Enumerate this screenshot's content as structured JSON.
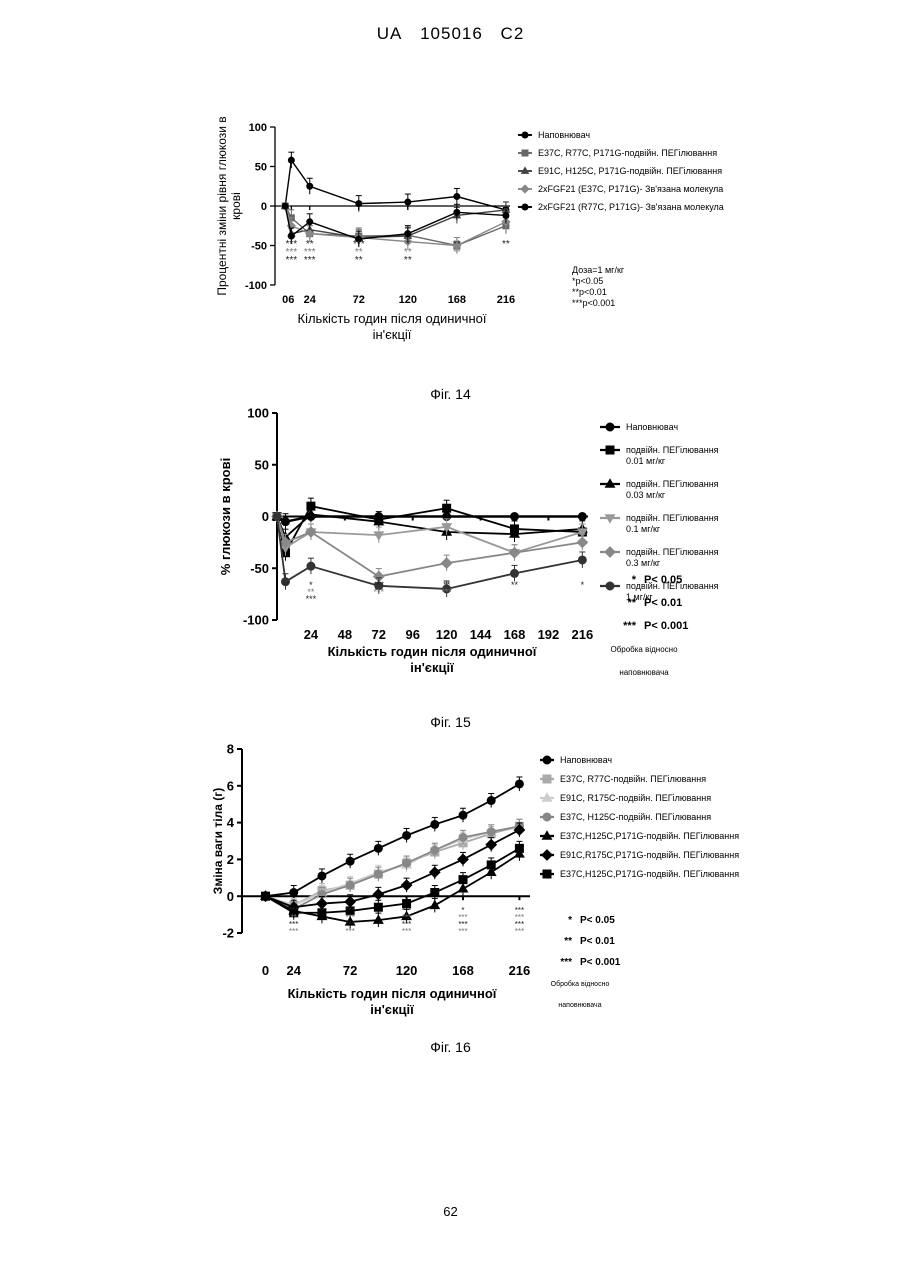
{
  "header": {
    "country": "UA",
    "number": "105016",
    "kind": "C2"
  },
  "page_number": "62",
  "figures": [
    {
      "caption": "Фіг. 14"
    },
    {
      "caption": "Фіг. 15"
    },
    {
      "caption": "Фіг. 16"
    }
  ],
  "chart_data": [
    {
      "type": "line",
      "ylabel": "Процентні зміни рівня глюкози в крові",
      "xlabel_lines": [
        "Кількість годин після одиничної",
        "ін'єкції"
      ],
      "ylim": [
        -100,
        100
      ],
      "yticks": [
        100,
        50,
        0,
        -50,
        -100
      ],
      "xticks": [
        0,
        6,
        24,
        72,
        120,
        168,
        216
      ],
      "legend_position": "right",
      "series": [
        {
          "name": "Наповнювач",
          "marker": "circle",
          "color": "#000000",
          "x": [
            0,
            6,
            24,
            72,
            120,
            168,
            216
          ],
          "y": [
            0,
            58,
            25,
            3,
            5,
            12,
            -5
          ]
        },
        {
          "name": "E37C, R77C, P171G-подвійн. ПЕГілювання",
          "marker": "square",
          "color": "#666666",
          "x": [
            0,
            6,
            24,
            72,
            120,
            168,
            216
          ],
          "y": [
            0,
            -15,
            -35,
            -38,
            -37,
            -50,
            -25
          ]
        },
        {
          "name": "E91C, H125C, P171G-подвійн. ПЕГілювання",
          "marker": "triangle",
          "color": "#444444",
          "x": [
            0,
            6,
            24,
            72,
            120,
            168,
            216
          ],
          "y": [
            0,
            -35,
            -30,
            -40,
            -38,
            -12,
            -5
          ]
        },
        {
          "name": "2xFGF21 (E37C, P171G)- Зв'язана молекула",
          "marker": "diamond",
          "color": "#888888",
          "x": [
            0,
            6,
            24,
            72,
            120,
            168,
            216
          ],
          "y": [
            0,
            -25,
            -35,
            -40,
            -45,
            -50,
            -20
          ]
        },
        {
          "name": "2xFGF21 (R77C, P171G)- Зв'язана молекула",
          "marker": "circle",
          "color": "#000000",
          "x": [
            0,
            6,
            24,
            72,
            120,
            168,
            216
          ],
          "y": [
            0,
            -38,
            -20,
            -42,
            -35,
            -8,
            -12
          ]
        }
      ],
      "annotations": [
        "Доза=1 мг/кг",
        "*p<0.05",
        "**p<0.01",
        "***p<0.001"
      ],
      "significance_marks": [
        {
          "x": 6,
          "rows": [
            "***",
            "***",
            "***"
          ]
        },
        {
          "x": 24,
          "rows": [
            "**",
            "***",
            "***"
          ]
        },
        {
          "x": 72,
          "rows": [
            "***",
            "**",
            "**"
          ]
        },
        {
          "x": 120,
          "rows": [
            "*",
            "**",
            "**"
          ]
        },
        {
          "x": 168,
          "rows": [
            "**",
            "**"
          ]
        },
        {
          "x": 216,
          "rows": [
            "**"
          ]
        }
      ]
    },
    {
      "type": "line",
      "ylabel": "% глюкози в крові",
      "xlabel_lines": [
        "Кількість годин після одиничної",
        "ін'єкції"
      ],
      "ylim": [
        -100,
        100
      ],
      "yticks": [
        100,
        50,
        0,
        -50,
        -100
      ],
      "xticks": [
        24,
        48,
        72,
        96,
        120,
        144,
        168,
        192,
        216
      ],
      "legend_position": "right",
      "series": [
        {
          "name": "Наповнювач",
          "marker": "circle",
          "color": "#000000",
          "x": [
            0,
            6,
            24,
            72,
            120,
            168,
            216
          ],
          "y": [
            0,
            -5,
            0,
            0,
            0,
            0,
            0
          ]
        },
        {
          "name": [
            "подвійн. ПЕГілювання",
            "0.01 мг/кг"
          ],
          "marker": "square",
          "color": "#000000",
          "x": [
            0,
            6,
            24,
            72,
            120,
            168,
            216
          ],
          "y": [
            0,
            -35,
            10,
            -3,
            8,
            -12,
            -15
          ]
        },
        {
          "name": [
            "подвійн. ПЕГілювання",
            "0.03 мг/кг"
          ],
          "marker": "triangle",
          "color": "#000000",
          "x": [
            0,
            6,
            24,
            72,
            120,
            168,
            216
          ],
          "y": [
            0,
            -20,
            2,
            -5,
            -15,
            -17,
            -12
          ]
        },
        {
          "name": [
            "подвійн. ПЕГілювання",
            "0.1 мг/кг"
          ],
          "marker": "triangle-down",
          "color": "#999999",
          "x": [
            0,
            6,
            24,
            72,
            120,
            168,
            216
          ],
          "y": [
            0,
            -30,
            -15,
            -18,
            -10,
            -35,
            -15
          ]
        },
        {
          "name": [
            "подвійн. ПЕГілювання",
            "0.3 мг/кг"
          ],
          "marker": "diamond",
          "color": "#888888",
          "x": [
            0,
            6,
            24,
            72,
            120,
            168,
            216
          ],
          "y": [
            0,
            -25,
            -15,
            -58,
            -45,
            -35,
            -25
          ]
        },
        {
          "name": [
            "подвійн. ПЕГілювання",
            "1 мг/кг"
          ],
          "marker": "circle",
          "color": "#333333",
          "x": [
            0,
            6,
            24,
            72,
            120,
            168,
            216
          ],
          "y": [
            0,
            -63,
            -48,
            -67,
            -70,
            -55,
            -42
          ]
        }
      ],
      "big_series_index": 0,
      "annotations": [
        {
          "stars": "*",
          "text": "P< 0.05"
        },
        {
          "stars": "**",
          "text": "P< 0.01"
        },
        {
          "stars": "***",
          "text": "P< 0.001"
        },
        {
          "stars": "",
          "text": "Обробка відносно"
        },
        {
          "stars": "",
          "text": "наповнювача"
        }
      ],
      "significance_marks": [
        {
          "x": 6,
          "rows": [
            "**"
          ]
        },
        {
          "x": 24,
          "rows": [
            "*",
            "**",
            "***"
          ]
        },
        {
          "x": 72,
          "rows": [
            "***",
            "***"
          ]
        },
        {
          "x": 120,
          "rows": [
            "**",
            "***"
          ]
        },
        {
          "x": 168,
          "rows": [
            "**"
          ]
        },
        {
          "x": 216,
          "rows": [
            "*"
          ]
        }
      ]
    },
    {
      "type": "line",
      "ylabel": "Зміна ваги тіла (г)",
      "xlabel_lines": [
        "Кількість годин після одиничної",
        "ін'єкції"
      ],
      "ylim": [
        -2,
        8
      ],
      "yticks": [
        8,
        6,
        4,
        2,
        0,
        -2
      ],
      "xticks": [
        0,
        24,
        72,
        120,
        168,
        216
      ],
      "legend_position": "right",
      "series": [
        {
          "name": "Наповнювач",
          "marker": "circle",
          "color": "#000000",
          "x": [
            0,
            24,
            48,
            72,
            96,
            120,
            144,
            168,
            192,
            216
          ],
          "y": [
            0,
            0.2,
            1.1,
            1.9,
            2.6,
            3.3,
            3.9,
            4.4,
            5.2,
            6.1
          ]
        },
        {
          "name": "E37C, R77C-подвійн. ПЕГілювання",
          "marker": "square",
          "color": "#aaaaaa",
          "x": [
            0,
            24,
            48,
            72,
            96,
            120,
            144,
            168,
            192,
            216
          ],
          "y": [
            0,
            -0.5,
            0.3,
            0.6,
            1.2,
            1.8,
            2.4,
            2.9,
            3.4,
            3.8
          ]
        },
        {
          "name": "E91C, R175C-подвійн. ПЕГілювання",
          "marker": "triangle",
          "color": "#cccccc",
          "x": [
            0,
            24,
            48,
            72,
            96,
            120,
            144,
            168,
            192,
            216
          ],
          "y": [
            0,
            -0.5,
            0.2,
            0.7,
            1.3,
            1.7,
            2.5,
            3.1,
            3.5,
            3.8
          ]
        },
        {
          "name": "E37C, H125C-подвійн. ПЕГілювання",
          "marker": "circle",
          "color": "#888888",
          "x": [
            0,
            24,
            48,
            72,
            96,
            120,
            144,
            168,
            192,
            216
          ],
          "y": [
            0,
            -0.7,
            0.1,
            0.6,
            1.2,
            1.8,
            2.5,
            3.2,
            3.5,
            3.8
          ]
        },
        {
          "name": "E37C,H125C,P171G-подвійн. ПЕГілювання",
          "marker": "triangle",
          "color": "#000000",
          "x": [
            0,
            24,
            48,
            72,
            96,
            120,
            144,
            168,
            192,
            216
          ],
          "y": [
            0,
            -0.8,
            -1.1,
            -1.4,
            -1.3,
            -1.1,
            -0.5,
            0.4,
            1.3,
            2.3
          ]
        },
        {
          "name": "E91C,R175C,P171G-подвійн. ПЕГілювання",
          "marker": "diamond",
          "color": "#000000",
          "x": [
            0,
            24,
            48,
            72,
            96,
            120,
            144,
            168,
            192,
            216
          ],
          "y": [
            0,
            -0.6,
            -0.4,
            -0.3,
            0.1,
            0.6,
            1.3,
            2.0,
            2.8,
            3.6
          ]
        },
        {
          "name": "E37C,H125C,P171G-подвійн. ПЕГілювання",
          "marker": "square",
          "color": "#000000",
          "x": [
            0,
            24,
            48,
            72,
            96,
            120,
            144,
            168,
            192,
            216
          ],
          "y": [
            0,
            -0.9,
            -0.9,
            -0.8,
            -0.6,
            -0.4,
            0.2,
            0.9,
            1.7,
            2.6
          ]
        }
      ],
      "annotations": [
        {
          "stars": "*",
          "text": "P< 0.05"
        },
        {
          "stars": "**",
          "text": "P< 0.01"
        },
        {
          "stars": "***",
          "text": "P< 0.001"
        },
        {
          "stars": "",
          "text": "Обробка відносно"
        },
        {
          "stars": "",
          "text": "наповнювача"
        }
      ],
      "significance_marks": [
        {
          "x": 24,
          "rows": [
            "***",
            "**",
            "***",
            "***"
          ]
        },
        {
          "x": 72,
          "rows": [
            "***",
            "***",
            "***",
            "***"
          ]
        },
        {
          "x": 120,
          "rows": [
            "***",
            "***",
            "***",
            "***"
          ]
        },
        {
          "x": 168,
          "rows": [
            "*",
            "***",
            "***",
            "***"
          ]
        },
        {
          "x": 216,
          "rows": [
            "***",
            "***",
            "***",
            "***"
          ]
        }
      ]
    }
  ]
}
